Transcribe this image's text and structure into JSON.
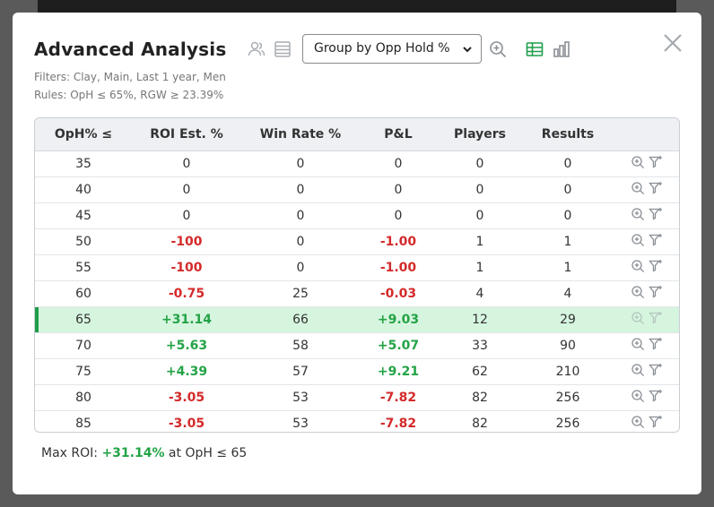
{
  "modal": {
    "title": "Advanced Analysis",
    "group_select": "Group by Opp Hold %",
    "filters_text": "Filters: Clay, Main, Last 1 year, Men",
    "rules_text": "Rules: OpH ≤ 65%, RGW ≥ 23.39%",
    "icons": [
      "players-icon",
      "list-icon",
      "zoom-in-icon",
      "table-view-icon",
      "bar-chart-icon",
      "close-icon"
    ]
  },
  "table": {
    "headers": [
      "OpH% ≤",
      "ROI Est. %",
      "Win Rate %",
      "P&L",
      "Players",
      "Results",
      ""
    ],
    "rows": [
      {
        "oph": "35",
        "roi": "0",
        "win": "0",
        "pl": "0",
        "players": "0",
        "results": "0",
        "roi_sign": "zero",
        "pl_sign": "zero"
      },
      {
        "oph": "40",
        "roi": "0",
        "win": "0",
        "pl": "0",
        "players": "0",
        "results": "0",
        "roi_sign": "zero",
        "pl_sign": "zero"
      },
      {
        "oph": "45",
        "roi": "0",
        "win": "0",
        "pl": "0",
        "players": "0",
        "results": "0",
        "roi_sign": "zero",
        "pl_sign": "zero"
      },
      {
        "oph": "50",
        "roi": "-100",
        "win": "0",
        "pl": "-1.00",
        "players": "1",
        "results": "1",
        "roi_sign": "neg",
        "pl_sign": "neg"
      },
      {
        "oph": "55",
        "roi": "-100",
        "win": "0",
        "pl": "-1.00",
        "players": "1",
        "results": "1",
        "roi_sign": "neg",
        "pl_sign": "neg"
      },
      {
        "oph": "60",
        "roi": "-0.75",
        "win": "25",
        "pl": "-0.03",
        "players": "4",
        "results": "4",
        "roi_sign": "neg",
        "pl_sign": "neg"
      },
      {
        "oph": "65",
        "roi": "+31.14",
        "win": "66",
        "pl": "+9.03",
        "players": "12",
        "results": "29",
        "roi_sign": "pos",
        "pl_sign": "pos",
        "highlighted": true
      },
      {
        "oph": "70",
        "roi": "+5.63",
        "win": "58",
        "pl": "+5.07",
        "players": "33",
        "results": "90",
        "roi_sign": "pos",
        "pl_sign": "pos"
      },
      {
        "oph": "75",
        "roi": "+4.39",
        "win": "57",
        "pl": "+9.21",
        "players": "62",
        "results": "210",
        "roi_sign": "pos",
        "pl_sign": "pos"
      },
      {
        "oph": "80",
        "roi": "-3.05",
        "win": "53",
        "pl": "-7.82",
        "players": "82",
        "results": "256",
        "roi_sign": "neg",
        "pl_sign": "neg"
      },
      {
        "oph": "85",
        "roi": "-3.05",
        "win": "53",
        "pl": "-7.82",
        "players": "82",
        "results": "256",
        "roi_sign": "neg",
        "pl_sign": "neg"
      }
    ]
  },
  "footer": {
    "prefix": "Max ROI: ",
    "value": "+31.14%",
    "suffix": " at OpH ≤ 65"
  },
  "colors": {
    "positive": "#23a346",
    "negative": "#d42a2a",
    "highlight_row": "#d6f5df",
    "accent_green": "#1e9e4a"
  }
}
